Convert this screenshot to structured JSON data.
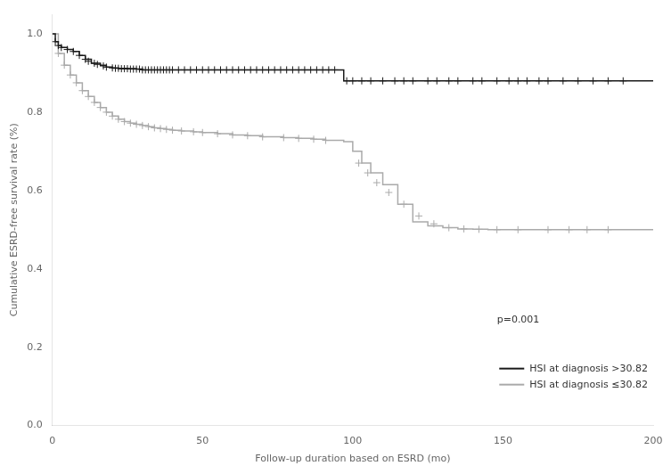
{
  "chart_data": {
    "type": "step",
    "x_label": "Follow-up duration based on ESRD (mo)",
    "y_label": "Cumulative ESRD-free survival rate (%)",
    "xlim": [
      0,
      200
    ],
    "ylim": [
      0,
      1.05
    ],
    "xticks": [
      0,
      50,
      100,
      150,
      200
    ],
    "yticks": [
      {
        "value": 0,
        "label": "0.0"
      },
      0.2,
      0.4,
      0.6,
      0.8,
      {
        "value": 1.0,
        "label": "1.0"
      }
    ],
    "grid": false,
    "legend": "lower right",
    "annotations": [
      {
        "text": "p=0.001",
        "x": 148,
        "y": 0.27
      }
    ],
    "series": [
      {
        "name": "HSI at diagnosis >30.82",
        "color": "#1a1a1a",
        "x": [
          0,
          1,
          2,
          3,
          5,
          7,
          9,
          11,
          13,
          16,
          18,
          20,
          22,
          25,
          28,
          30,
          96,
          97,
          200
        ],
        "values": [
          1.0,
          0.98,
          0.97,
          0.965,
          0.96,
          0.955,
          0.945,
          0.935,
          0.925,
          0.92,
          0.915,
          0.913,
          0.912,
          0.911,
          0.91,
          0.908,
          0.908,
          0.88,
          0.88
        ],
        "censor_x": [
          1,
          2,
          3,
          5,
          7,
          9,
          11,
          12,
          14,
          15,
          17,
          18,
          20,
          21,
          22,
          23,
          24,
          25,
          26,
          27,
          28,
          29,
          30,
          31,
          32,
          33,
          34,
          35,
          36,
          37,
          38,
          39,
          40,
          42,
          44,
          46,
          48,
          50,
          52,
          54,
          56,
          58,
          60,
          62,
          64,
          66,
          68,
          70,
          72,
          74,
          76,
          78,
          80,
          82,
          84,
          86,
          88,
          90,
          92,
          94,
          98,
          100,
          103,
          106,
          110,
          114,
          117,
          120,
          125,
          128,
          132,
          135,
          140,
          143,
          148,
          152,
          155,
          158,
          162,
          165,
          170,
          175,
          180,
          185,
          190
        ],
        "censor_values": [
          0.98,
          0.97,
          0.965,
          0.96,
          0.955,
          0.945,
          0.935,
          0.93,
          0.925,
          0.922,
          0.918,
          0.915,
          0.913,
          0.912,
          0.912,
          0.911,
          0.911,
          0.911,
          0.91,
          0.91,
          0.91,
          0.91,
          0.908,
          0.908,
          0.908,
          0.908,
          0.908,
          0.908,
          0.908,
          0.908,
          0.908,
          0.908,
          0.908,
          0.908,
          0.908,
          0.908,
          0.908,
          0.908,
          0.908,
          0.908,
          0.908,
          0.908,
          0.908,
          0.908,
          0.908,
          0.908,
          0.908,
          0.908,
          0.908,
          0.908,
          0.908,
          0.908,
          0.908,
          0.908,
          0.908,
          0.908,
          0.908,
          0.908,
          0.908,
          0.908,
          0.88,
          0.88,
          0.88,
          0.88,
          0.88,
          0.88,
          0.88,
          0.88,
          0.88,
          0.88,
          0.88,
          0.88,
          0.88,
          0.88,
          0.88,
          0.88,
          0.88,
          0.88,
          0.88,
          0.88,
          0.88,
          0.88,
          0.88,
          0.88,
          0.88
        ]
      },
      {
        "name": "HSI at diagnosis ≤30.82",
        "color": "#aaaaaa",
        "x": [
          0,
          2,
          4,
          6,
          8,
          10,
          12,
          14,
          16,
          18,
          20,
          22,
          24,
          26,
          28,
          30,
          32,
          34,
          36,
          38,
          40,
          43,
          47,
          50,
          55,
          60,
          65,
          70,
          77,
          82,
          87,
          91,
          97,
          100,
          103,
          106,
          110,
          115,
          120,
          125,
          130,
          135,
          140,
          145,
          160,
          200
        ],
        "values": [
          1.0,
          0.95,
          0.92,
          0.895,
          0.875,
          0.855,
          0.84,
          0.825,
          0.812,
          0.8,
          0.79,
          0.782,
          0.776,
          0.772,
          0.769,
          0.766,
          0.763,
          0.76,
          0.758,
          0.756,
          0.754,
          0.752,
          0.75,
          0.748,
          0.745,
          0.742,
          0.74,
          0.737,
          0.735,
          0.733,
          0.731,
          0.728,
          0.725,
          0.7,
          0.67,
          0.645,
          0.615,
          0.565,
          0.52,
          0.51,
          0.505,
          0.502,
          0.501,
          0.5,
          0.5,
          0.5
        ],
        "censor_x": [
          2,
          4,
          6,
          8,
          10,
          12,
          14,
          16,
          18,
          20,
          22,
          24,
          26,
          28,
          30,
          32,
          34,
          36,
          38,
          40,
          43,
          47,
          50,
          55,
          60,
          65,
          70,
          77,
          82,
          87,
          91,
          102,
          105,
          108,
          112,
          117,
          122,
          127,
          132,
          137,
          142,
          148,
          155,
          165,
          172,
          178,
          185
        ],
        "censor_values": [
          0.95,
          0.92,
          0.895,
          0.875,
          0.855,
          0.84,
          0.825,
          0.812,
          0.8,
          0.79,
          0.782,
          0.776,
          0.772,
          0.769,
          0.766,
          0.763,
          0.76,
          0.758,
          0.756,
          0.754,
          0.752,
          0.75,
          0.748,
          0.745,
          0.742,
          0.74,
          0.737,
          0.735,
          0.733,
          0.731,
          0.728,
          0.67,
          0.645,
          0.62,
          0.595,
          0.565,
          0.535,
          0.515,
          0.505,
          0.502,
          0.501,
          0.5,
          0.5,
          0.5,
          0.5,
          0.5,
          0.5
        ]
      }
    ]
  }
}
